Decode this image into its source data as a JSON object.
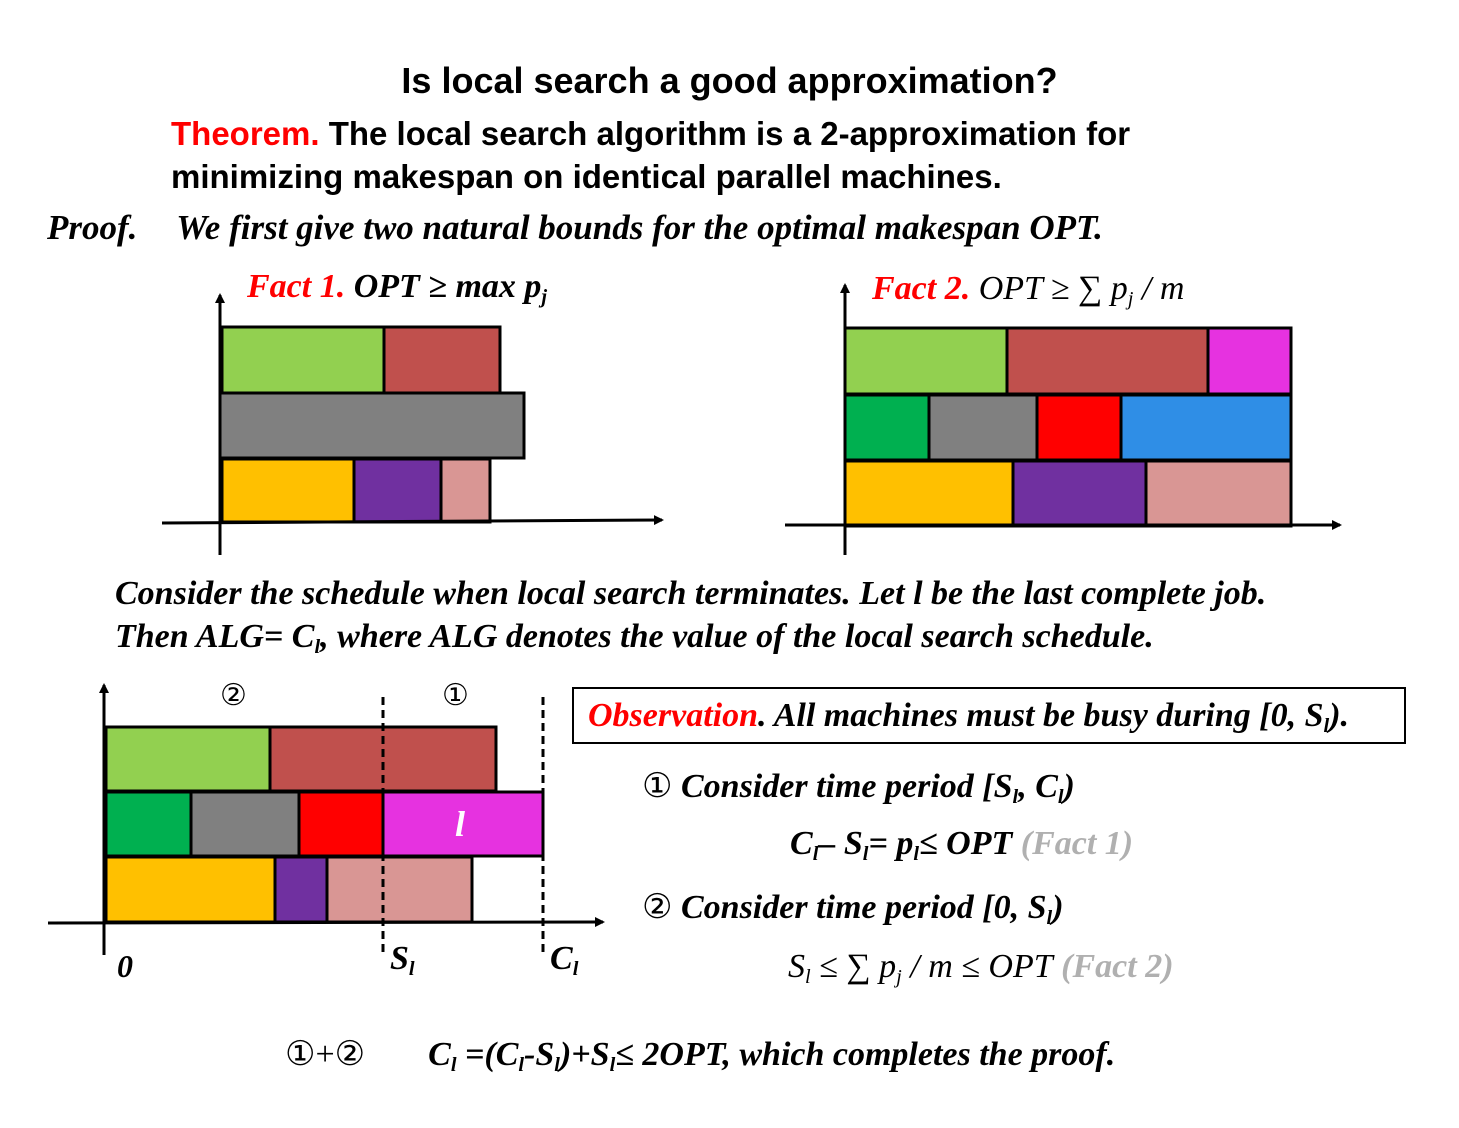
{
  "title": "Is local search a good approximation?",
  "theorem": {
    "label": "Theorem.",
    "line1": "The local search algorithm is a 2-approximation for",
    "line2": "minimizing makespan on identical parallel machines."
  },
  "proof": {
    "label": "Proof.",
    "text": "We first give two natural bounds for the optimal makespan OPT."
  },
  "fact1": {
    "label": "Fact 1.",
    "formula": "OPT ≥ max p",
    "sub": "j"
  },
  "fact2": {
    "label": "Fact 2.",
    "formula_a": "OPT ≥ ∑ p",
    "sub": "j",
    "formula_b": " / m"
  },
  "consider": {
    "line1": "Consider the schedule when local search terminates. Let l be the last complete job.",
    "line2_a": "Then ALG= C",
    "line2_sub": "l",
    "line2_b": ", where ALG denotes the value of the local search schedule."
  },
  "observation": {
    "label": "Observation",
    "text": ". All machines must be busy during [0, S",
    "sub": "l",
    "end": ")."
  },
  "step1": {
    "marker": "①",
    "text": "Consider time period [S",
    "s1": "l",
    "mid": ", C",
    "s2": "l",
    "end": ")",
    "eq_a": "C",
    "eq_s1": "l",
    "eq_b": "– S",
    "eq_s2": "l",
    "eq_c": "= p",
    "eq_s3": "l",
    "eq_d": "≤ OPT",
    "eq_note": "(Fact 1)"
  },
  "step2": {
    "marker": "②",
    "text": "Consider time period [0, S",
    "s1": "l",
    "end": ")",
    "eq_a": "S",
    "eq_s1": "l",
    "eq_b": " ≤ ∑ p",
    "eq_s2": "j",
    "eq_c": " / m ≤ OPT",
    "eq_note": "(Fact 2)"
  },
  "conclusion": {
    "markers": "①+②",
    "a": "C",
    "s1": "l",
    "b": " =(C",
    "s2": "l",
    "c": "-S",
    "s3": "l",
    "d": ")+S",
    "s4": "l",
    "e": "≤ 2OPT, which completes the proof."
  },
  "diagram3": {
    "marker2": "②",
    "marker1": "①",
    "job_label": "l",
    "axis_zero": "0",
    "s_label": "S",
    "s_sub": "l",
    "c_label": "C",
    "c_sub": "l"
  },
  "colors": {
    "light_green": "#92d050",
    "brick": "#c0504d",
    "gray": "#808080",
    "gold": "#ffc000",
    "purple": "#7030a0",
    "pink": "#d99694",
    "magenta": "#e632e0",
    "green": "#00b050",
    "red": "#ff0000",
    "blue": "#2f8ee6"
  }
}
